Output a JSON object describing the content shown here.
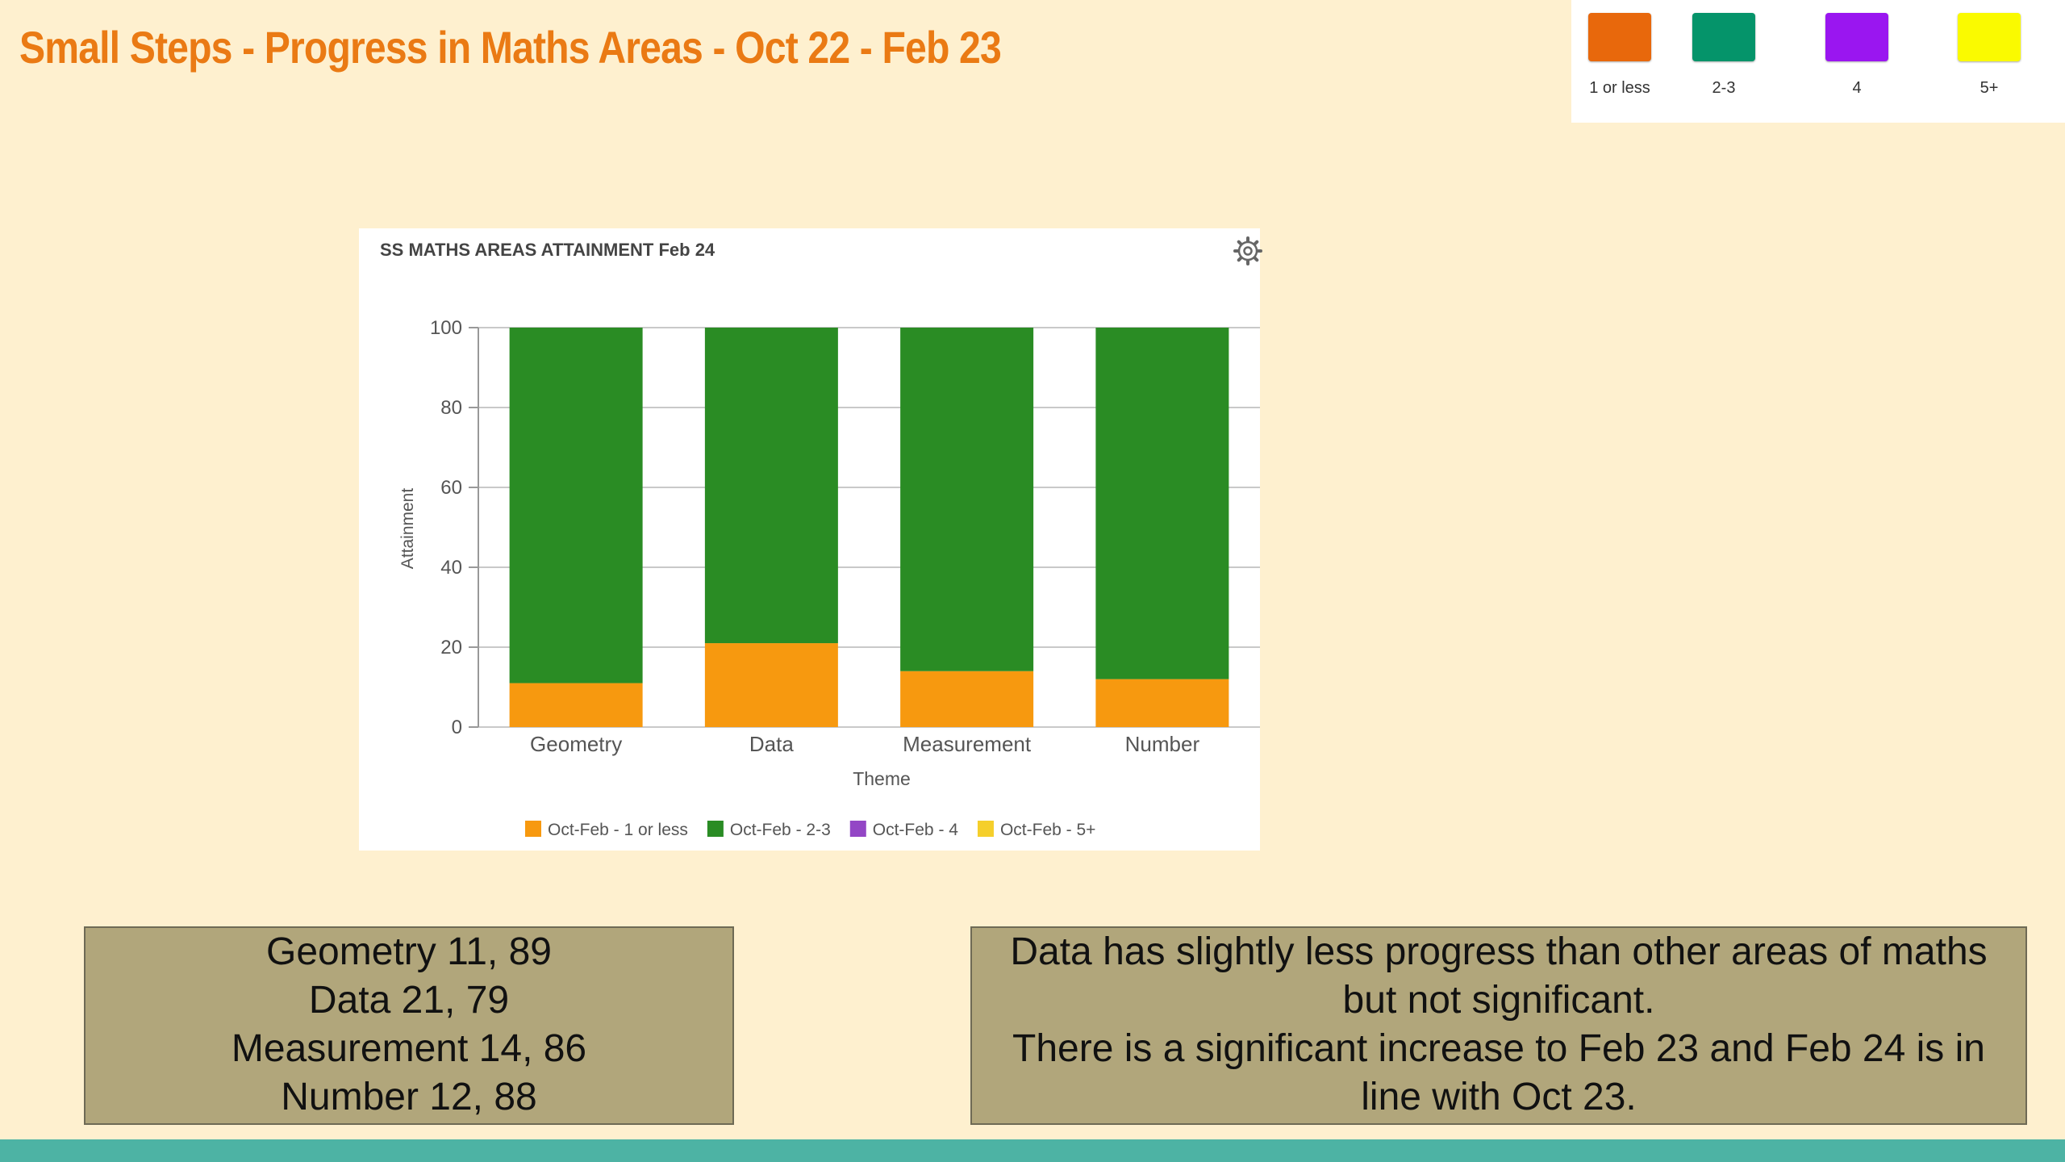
{
  "slide": {
    "title": "Small Steps - Progress in Maths Areas - Oct 22 - Feb 23"
  },
  "key": {
    "items": [
      {
        "label": "1 or less",
        "color": "#e8680c"
      },
      {
        "label": "2-3",
        "color": "#05946a"
      },
      {
        "label": "4",
        "color": "#9a16f0"
      },
      {
        "label": "5+",
        "color": "#fafa00"
      }
    ]
  },
  "chart_panel": {
    "title": "SS MATHS AREAS ATTAINMENT Feb 24",
    "settings_icon": "gear-icon"
  },
  "chart_data": {
    "type": "bar",
    "stacked": true,
    "categories": [
      "Geometry",
      "Data",
      "Measurement",
      "Number"
    ],
    "series": [
      {
        "name": "Oct-Feb - 1 or less",
        "color": "#f7990f",
        "values": [
          11,
          21,
          14,
          12
        ]
      },
      {
        "name": "Oct-Feb - 2-3",
        "color": "#2a8c24",
        "values": [
          89,
          79,
          86,
          88
        ]
      },
      {
        "name": "Oct-Feb - 4",
        "color": "#9346c5",
        "values": [
          0,
          0,
          0,
          0
        ]
      },
      {
        "name": "Oct-Feb - 5+",
        "color": "#f5cf2b",
        "values": [
          0,
          0,
          0,
          0
        ]
      }
    ],
    "yticks": [
      0,
      20,
      40,
      60,
      80,
      100
    ],
    "ylim": [
      0,
      100
    ],
    "xlabel": "Theme",
    "ylabel": "Attainment",
    "grid": true,
    "legend_position": "bottom"
  },
  "summary_box": {
    "lines": [
      "Geometry 11, 89",
      "Data 21, 79",
      "Measurement 14, 86",
      "Number 12, 88"
    ]
  },
  "comment_box": {
    "lines": [
      "Data has slightly less progress than other areas of maths",
      "but not significant.",
      "There is a significant increase to Feb 23 and Feb 24 is in",
      "line with Oct 23."
    ]
  }
}
